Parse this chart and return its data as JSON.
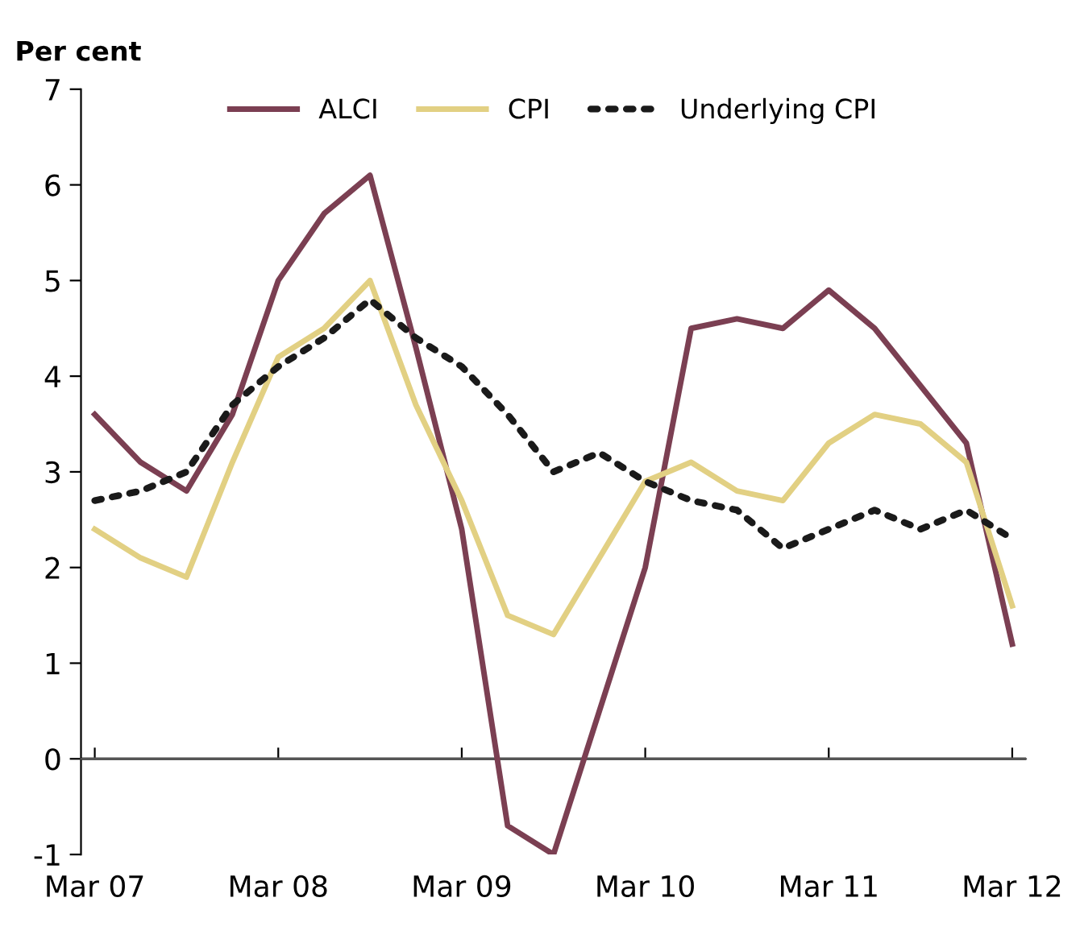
{
  "chart_data": {
    "type": "line",
    "ylabel": "Per cent",
    "categories": [
      "Mar 07",
      null,
      null,
      null,
      "Mar 08",
      null,
      null,
      null,
      "Mar 09",
      null,
      null,
      null,
      "Mar 10",
      null,
      null,
      null,
      "Mar 11",
      null,
      null,
      null,
      "Mar 12"
    ],
    "series": [
      {
        "name": "ALCI",
        "color": "#7b3f52",
        "line_style": "solid",
        "values": [
          3.6,
          3.1,
          2.8,
          3.6,
          5.0,
          5.7,
          6.1,
          4.3,
          2.4,
          -0.7,
          -1.0,
          0.5,
          2.0,
          4.5,
          4.6,
          4.5,
          4.9,
          4.5,
          3.9,
          3.3,
          1.2
        ]
      },
      {
        "name": "CPI",
        "color": "#e2d083",
        "line_style": "solid",
        "values": [
          2.4,
          2.1,
          1.9,
          3.1,
          4.2,
          4.5,
          5.0,
          3.7,
          2.7,
          1.5,
          1.3,
          2.1,
          2.9,
          3.1,
          2.8,
          2.7,
          3.3,
          3.6,
          3.5,
          3.1,
          1.6
        ]
      },
      {
        "name": "Underlying CPI",
        "color": "#1a1a1a",
        "line_style": "dotted",
        "values": [
          2.7,
          2.8,
          3.0,
          3.7,
          4.1,
          4.4,
          4.8,
          4.4,
          4.1,
          3.6,
          3.0,
          3.2,
          2.9,
          2.7,
          2.6,
          2.2,
          2.4,
          2.6,
          2.4,
          2.6,
          2.3
        ]
      }
    ],
    "ylim": [
      -1,
      7
    ],
    "yticks": [
      -1,
      0,
      1,
      2,
      3,
      4,
      5,
      6,
      7
    ],
    "ref_lines": [
      {
        "axis": "y",
        "value": 0,
        "color": "#555555"
      }
    ],
    "grid": false,
    "legend": "top"
  }
}
